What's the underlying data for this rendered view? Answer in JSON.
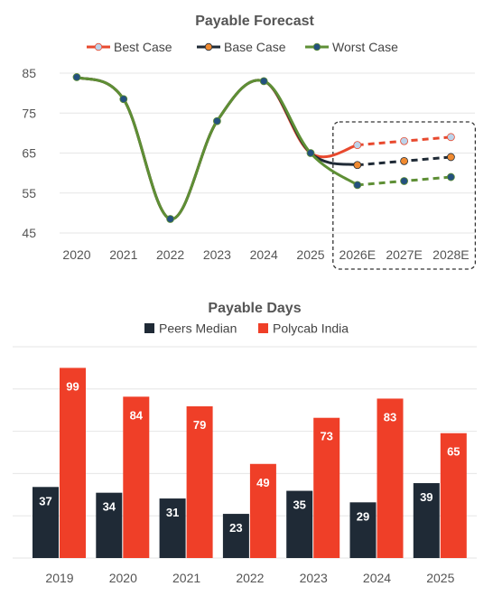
{
  "chart_data": [
    {
      "type": "line",
      "title": "Payable Forecast",
      "categories": [
        "2020",
        "2021",
        "2022",
        "2023",
        "2024",
        "2025",
        "2026E",
        "2027E",
        "2028E"
      ],
      "ylim": [
        45,
        85
      ],
      "yticks": [
        45,
        55,
        65,
        75,
        85
      ],
      "grid": true,
      "legend_position": "top",
      "forecast_box": [
        "2026E",
        "2028E"
      ],
      "series": [
        {
          "name": "Best Case",
          "values": [
            84,
            78.5,
            48.5,
            73,
            83,
            65,
            67,
            68,
            69
          ],
          "color": "#e8492e",
          "marker": "#bcd3ea"
        },
        {
          "name": "Base Case",
          "values": [
            84,
            78.5,
            48.5,
            73,
            83,
            65,
            62,
            63,
            64
          ],
          "color": "#1f2a36",
          "marker": "#f08a30"
        },
        {
          "name": "Worst Case",
          "values": [
            84,
            78.5,
            48.5,
            73,
            83,
            65,
            57,
            58,
            59
          ],
          "color": "#5e8f35",
          "marker": "#24517e"
        }
      ]
    },
    {
      "type": "bar",
      "title": "Payable Days",
      "categories": [
        "2019",
        "2020",
        "2021",
        "2022",
        "2023",
        "2024",
        "2025"
      ],
      "ylim": [
        0,
        110
      ],
      "grid": true,
      "legend_position": "top",
      "series": [
        {
          "name": "Peers Median",
          "values": [
            37,
            34,
            31,
            23,
            35,
            29,
            39
          ],
          "color": "#1f2a36"
        },
        {
          "name": "Polycab India",
          "values": [
            99,
            84,
            79,
            49,
            73,
            83,
            65
          ],
          "color": "#ef3f28"
        }
      ]
    }
  ]
}
